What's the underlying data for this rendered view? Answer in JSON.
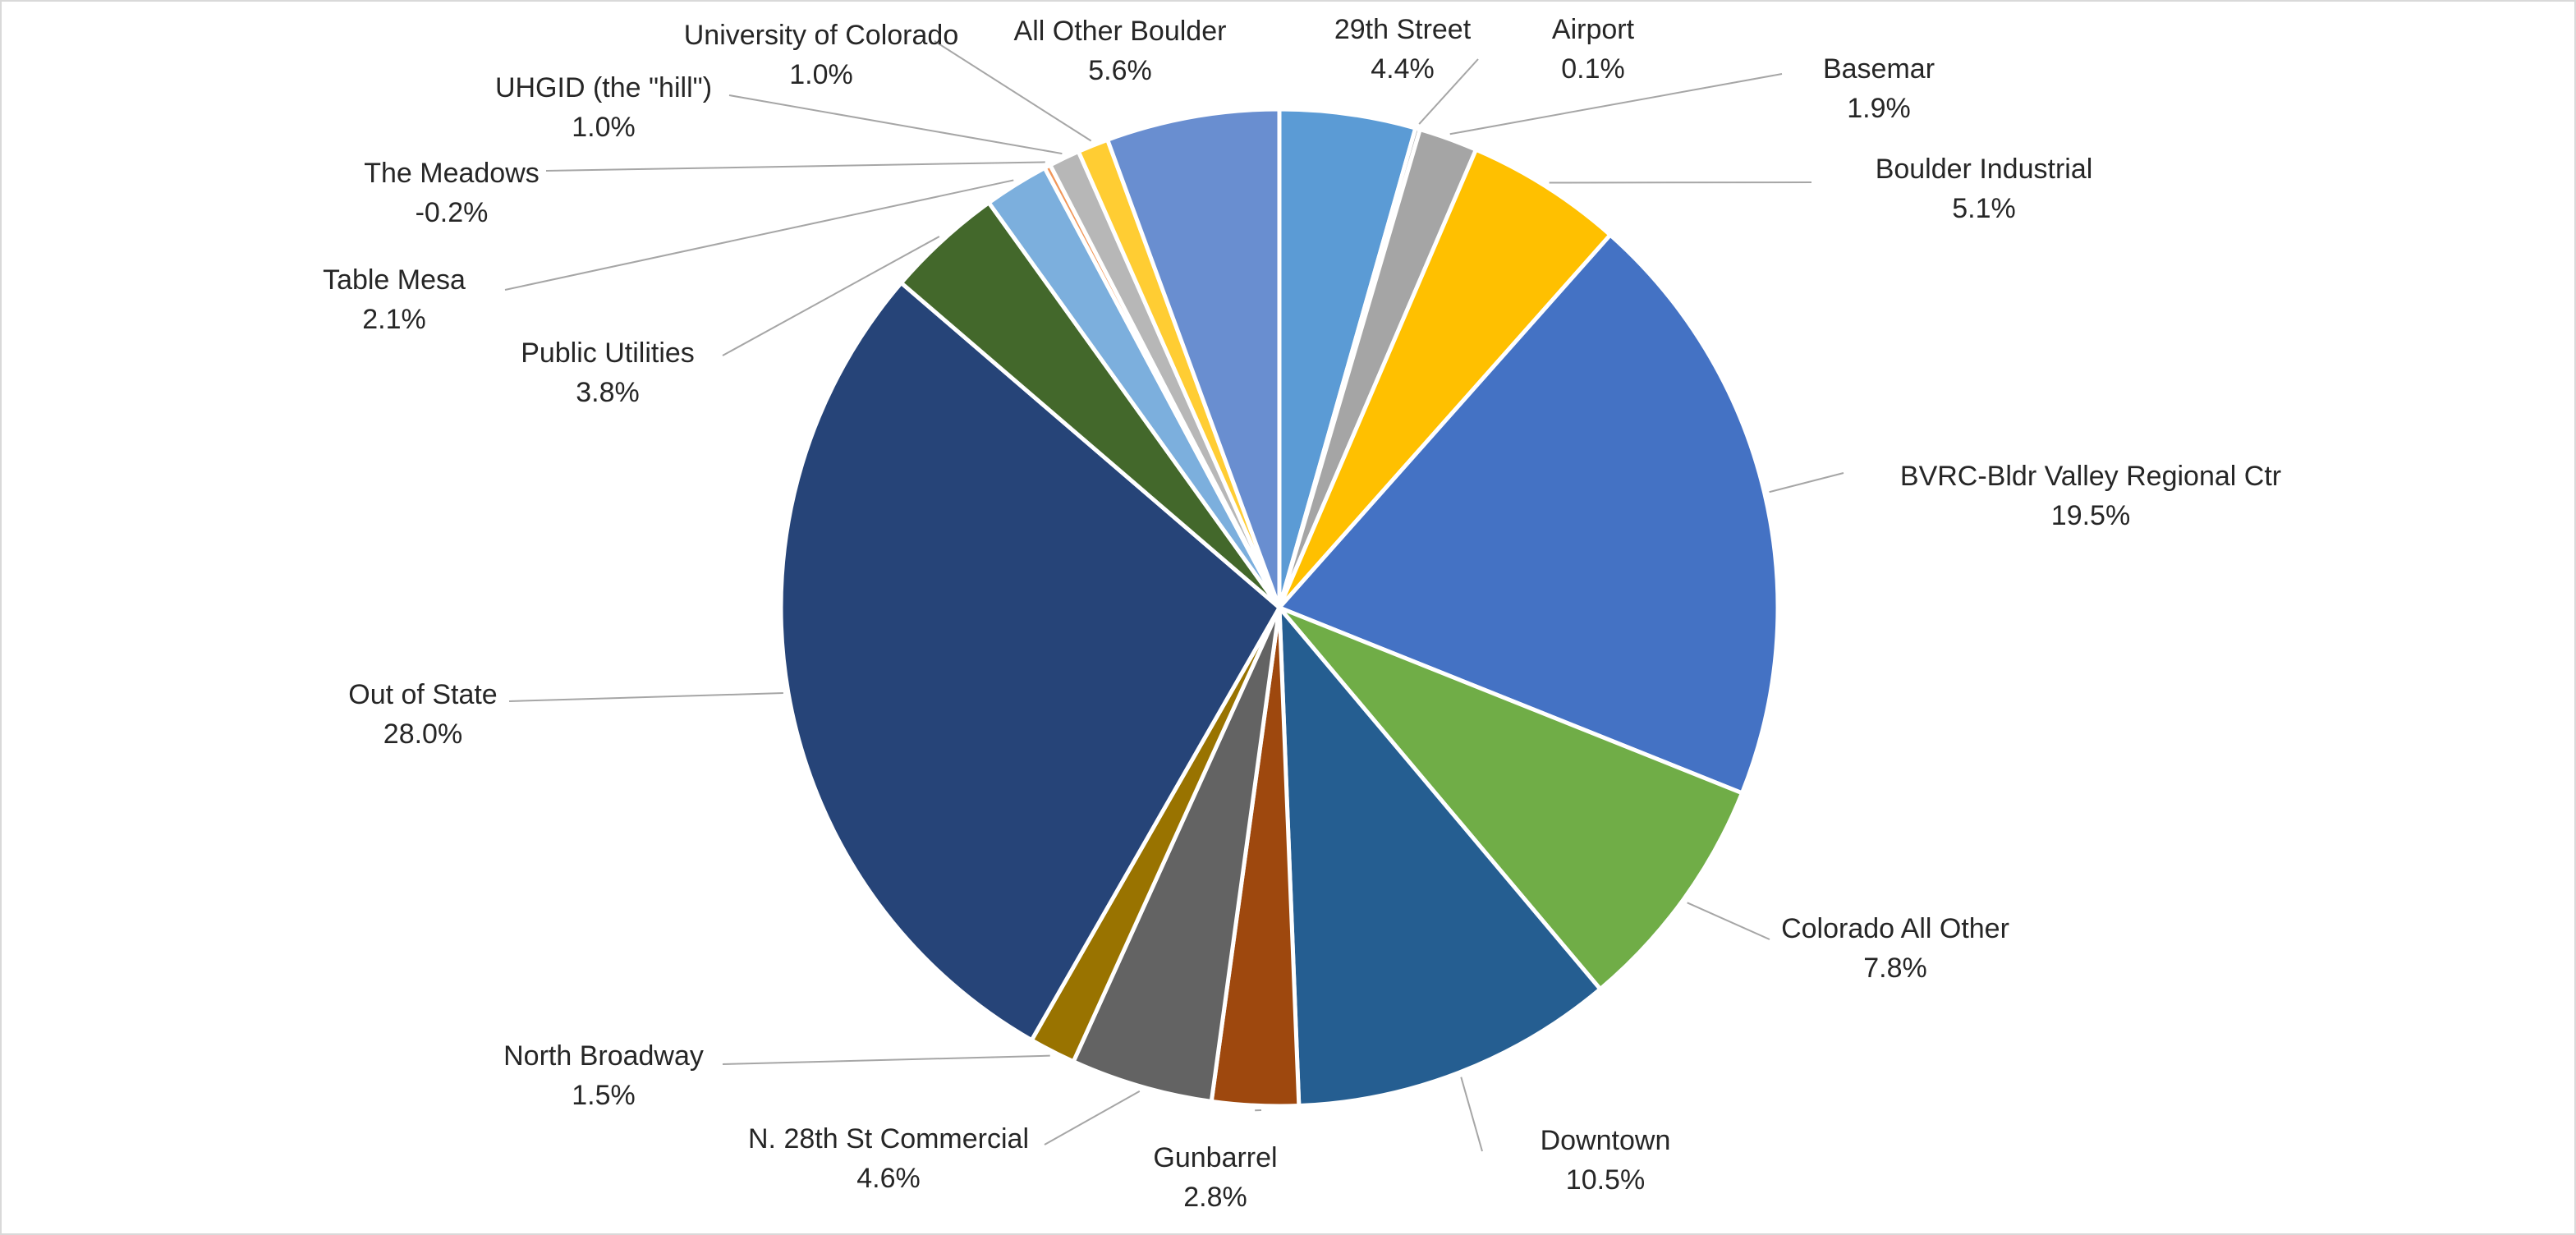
{
  "chart_data": {
    "type": "pie",
    "title": "",
    "legend": "none",
    "label_format": "category name and percent with leader lines",
    "slices": [
      {
        "name": "29th Street",
        "value": 4.4,
        "label": "4.4%",
        "color": "#5b9bd5"
      },
      {
        "name": "Airport",
        "value": 0.1,
        "label": "0.1%",
        "color": "#a5a5a5"
      },
      {
        "name": "Basemar",
        "value": 1.9,
        "label": "1.9%",
        "color": "#a5a5a5"
      },
      {
        "name": "Boulder Industrial",
        "value": 5.1,
        "label": "5.1%",
        "color": "#ffc000"
      },
      {
        "name": "BVRC-Bldr Valley Regional Ctr",
        "value": 19.5,
        "label": "19.5%",
        "color": "#4472c4"
      },
      {
        "name": "Colorado All Other",
        "value": 7.8,
        "label": "7.8%",
        "color": "#70ad47"
      },
      {
        "name": "Downtown",
        "value": 10.5,
        "label": "10.5%",
        "color": "#255e91"
      },
      {
        "name": "Gunbarrel",
        "value": 2.8,
        "label": "2.8%",
        "color": "#9e480e"
      },
      {
        "name": "N. 28th St Commercial",
        "value": 4.6,
        "label": "4.6%",
        "color": "#636363"
      },
      {
        "name": "North Broadway",
        "value": 1.5,
        "label": "1.5%",
        "color": "#997300"
      },
      {
        "name": "Out of State",
        "value": 28.0,
        "label": "28.0%",
        "color": "#264478"
      },
      {
        "name": "Public Utilities",
        "value": 3.8,
        "label": "3.8%",
        "color": "#43682b"
      },
      {
        "name": "Table Mesa",
        "value": 2.1,
        "label": "2.1%",
        "color": "#7cafdd"
      },
      {
        "name": "The Meadows",
        "value": -0.2,
        "label": "-0.2%",
        "color": "#f1975a"
      },
      {
        "name": "UHGID (the \"hill\")",
        "value": 1.0,
        "label": "1.0%",
        "color": "#b7b7b7"
      },
      {
        "name": "University of Colorado",
        "value": 1.0,
        "label": "1.0%",
        "color": "#ffcd33"
      },
      {
        "name": "All Other Boulder",
        "value": 5.6,
        "label": "5.6%",
        "color": "#698ed0"
      }
    ]
  }
}
